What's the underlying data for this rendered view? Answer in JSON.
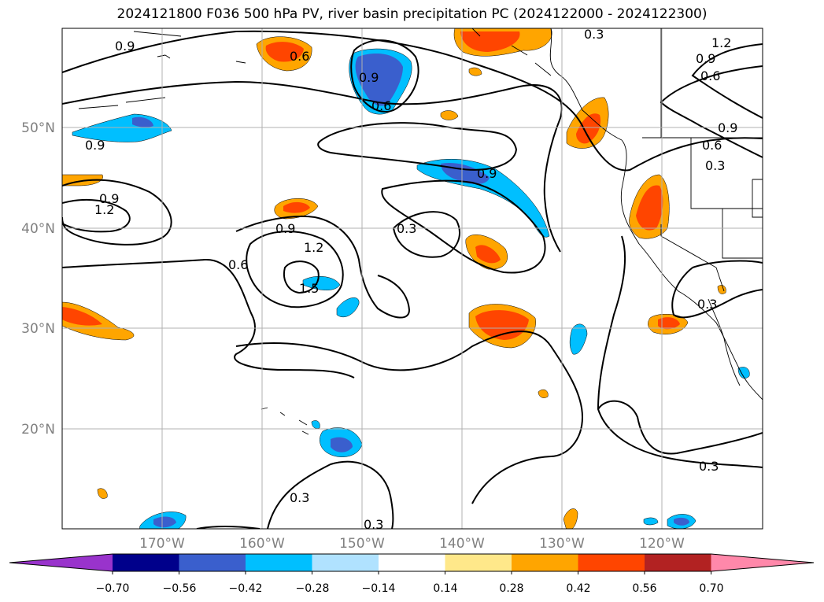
{
  "title": "2024121800 F036 500 hPa PV, river basin precipitation PC (2024122000 - 2024122300)",
  "lat_labels": [
    "50°N",
    "40°N",
    "30°N",
    "20°N"
  ],
  "lon_labels": [
    "170°W",
    "160°W",
    "150°W",
    "140°W",
    "130°W",
    "120°W"
  ],
  "contour_labels": [
    "0.9",
    "0.6",
    "0.9",
    "0.6",
    "0.3",
    "1.2",
    "0.9",
    "0.6",
    "0.9",
    "0.6",
    "0.3",
    "0.9",
    "0.9",
    "1.2",
    "0.9",
    "1.2",
    "0.6",
    "1.5",
    "0.9",
    "0.3",
    "0.3",
    "0.3",
    "0.3",
    "0.3"
  ],
  "colorbar": {
    "ticks": [
      "−0.70",
      "−0.56",
      "−0.42",
      "−0.28",
      "−0.14",
      "0.14",
      "0.28",
      "0.42",
      "0.56",
      "0.70"
    ],
    "colors": [
      "#9933cc",
      "#00008b",
      "#3a5fcd",
      "#00bfff",
      "#b0e2ff",
      "#ffffff",
      "#ffe88a",
      "#ffa500",
      "#ff4500",
      "#b22222",
      "#ff88aa"
    ]
  },
  "fill_colors": {
    "pos_light": "#ffe88a",
    "pos_mid": "#ffa500",
    "pos_strong": "#ff4500",
    "neg_light": "#b0e2ff",
    "neg_mid": "#00bfff",
    "neg_strong": "#3a5fcd"
  }
}
